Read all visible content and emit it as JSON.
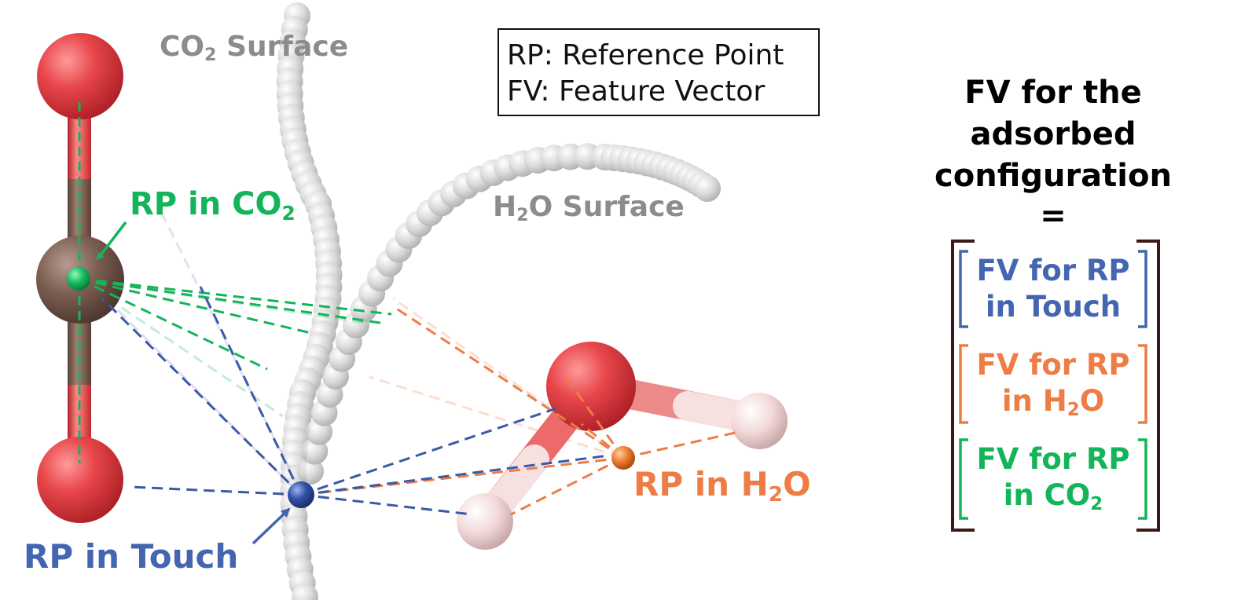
{
  "labels": {
    "co2_surface": "CO",
    "co2_surface_sub": "2",
    "co2_surface_rest": " Surface",
    "h2o_surface_pre": "H",
    "h2o_surface_sub": "2",
    "h2o_surface_rest": "O Surface",
    "rp_co2_pre": "RP in CO",
    "rp_co2_sub": "2",
    "rp_touch": "RP in Touch",
    "rp_h2o_pre": "RP in H",
    "rp_h2o_sub": "2",
    "rp_h2o_rest": "O"
  },
  "legend": {
    "line1": "RP: Reference Point",
    "line2": "FV: Feature Vector"
  },
  "fv": {
    "title_line1": "FV for the",
    "title_line2": "adsorbed",
    "title_line3": "configuration",
    "equals": "=",
    "touch_line1": "FV for RP",
    "touch_line2": "in Touch",
    "h2o_line1": "FV for RP",
    "h2o_line2_pre": "in H",
    "h2o_line2_sub": "2",
    "h2o_line2_rest": "O",
    "co2_line1": "FV for RP",
    "co2_line2_pre": "in CO",
    "co2_line2_sub": "2"
  },
  "colors": {
    "green": "#14b45a",
    "blue": "#4466b0",
    "orange": "#ee7c45",
    "oxygen": "#e8474b",
    "carbon": "#7b5e52",
    "hydrogen": "#f3d9d9",
    "surface_bead": "#bdbdbd",
    "bracket_outer": "#3a1a14"
  }
}
